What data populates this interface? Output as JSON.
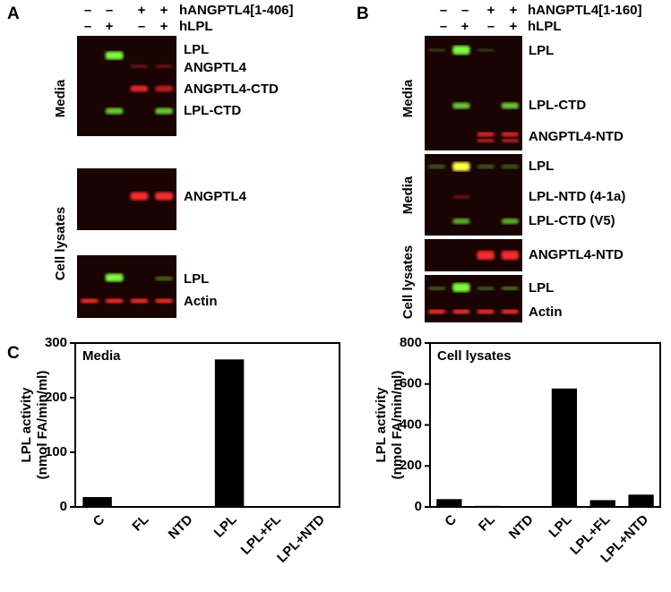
{
  "panels": {
    "A": {
      "label": "A",
      "header": [
        {
          "signs": [
            "–",
            "–",
            "+",
            "+"
          ],
          "label": "hANGPTL4[1-406]"
        },
        {
          "signs": [
            "–",
            "+",
            "–",
            "+"
          ],
          "label": "hLPL"
        }
      ],
      "side_labels": [
        "Media",
        "Cell lysates"
      ],
      "blots": [
        {
          "bands": [
            "LPL",
            "ANGPTL4",
            "ANGPTL4-CTD",
            "LPL-CTD"
          ]
        },
        {
          "bands": [
            "ANGPTL4"
          ]
        },
        {
          "bands": [
            "LPL",
            "Actin"
          ]
        }
      ]
    },
    "B": {
      "label": "B",
      "header": [
        {
          "signs": [
            "–",
            "–",
            "+",
            "+"
          ],
          "label": "hANGPTL4[1-160]"
        },
        {
          "signs": [
            "–",
            "+",
            "–",
            "+"
          ],
          "label": "hLPL"
        }
      ],
      "side_labels": [
        "Media",
        "Media",
        "Cell lysates"
      ],
      "blots": [
        {
          "bands": [
            "LPL",
            "LPL-CTD",
            "ANGPTL4-NTD"
          ]
        },
        {
          "bands": [
            "LPL",
            "LPL-NTD (4-1a)",
            "LPL-CTD (V5)"
          ]
        },
        {
          "bands": [
            "ANGPTL4-NTD"
          ]
        },
        {
          "bands": [
            "LPL",
            "Actin"
          ]
        }
      ]
    },
    "C": {
      "label": "C"
    }
  },
  "chart_data": [
    {
      "type": "bar",
      "title": "Media",
      "ylabel": [
        "LPL activity",
        "(nmol FA/min/ml)"
      ],
      "categories": [
        "C",
        "FL",
        "NTD",
        "LPL",
        "LPL+FL",
        "LPL+NTD"
      ],
      "values": [
        18,
        1,
        1,
        270,
        1,
        1
      ],
      "color": "#000000",
      "ylim": [
        0,
        300
      ],
      "yticks": [
        0,
        100,
        200,
        300
      ]
    },
    {
      "type": "bar",
      "title": "Cell lysates",
      "ylabel": [
        "LPL activity",
        "(nmol FA/min/ml)"
      ],
      "categories": [
        "C",
        "FL",
        "NTD",
        "LPL",
        "LPL+FL",
        "LPL+NTD"
      ],
      "values": [
        38,
        5,
        3,
        578,
        33,
        60
      ],
      "color": "#000000",
      "ylim": [
        0,
        800
      ],
      "yticks": [
        0,
        200,
        400,
        600,
        800
      ]
    }
  ]
}
